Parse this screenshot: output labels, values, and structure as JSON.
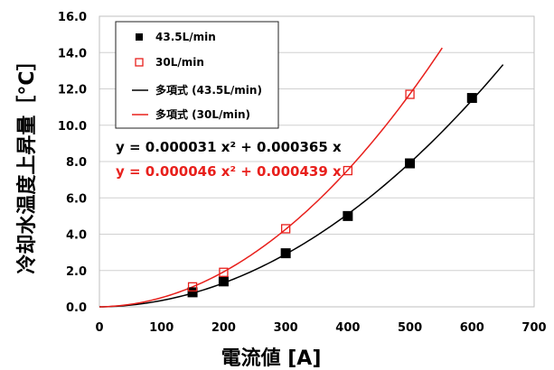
{
  "chart_data": {
    "type": "scatter",
    "xlabel": "電流値 [A]",
    "ylabel": "冷却水温度上昇量［°C］",
    "xlim": [
      0,
      700
    ],
    "ylim": [
      0,
      16
    ],
    "x_ticks": [
      "0",
      "100",
      "200",
      "300",
      "400",
      "500",
      "600",
      "700"
    ],
    "y_ticks": [
      "0.0",
      "2.0",
      "4.0",
      "6.0",
      "8.0",
      "10.0",
      "12.0",
      "14.0",
      "16.0"
    ],
    "grid": "horizontal",
    "legend_position": "top-left",
    "series": [
      {
        "name": "43.5L/min",
        "marker": "filled-square",
        "color": "#000000",
        "points": [
          [
            150,
            0.8
          ],
          [
            200,
            1.4
          ],
          [
            300,
            2.95
          ],
          [
            400,
            5.0
          ],
          [
            500,
            7.9
          ],
          [
            600,
            11.5
          ]
        ]
      },
      {
        "name": "30L/min",
        "marker": "open-square",
        "color": "#e8201c",
        "points": [
          [
            150,
            1.1
          ],
          [
            200,
            1.9
          ],
          [
            300,
            4.3
          ],
          [
            400,
            7.5
          ],
          [
            500,
            11.7
          ]
        ]
      }
    ],
    "trendlines": [
      {
        "name": "多項式 (43.5L/min)",
        "color": "#000000",
        "a": 3.1e-05,
        "b": 0.000365,
        "x_range": [
          0,
          650
        ],
        "equation": "y = 0.000031 x² + 0.000365 x"
      },
      {
        "name": "多項式 (30L/min)",
        "color": "#e8201c",
        "a": 4.6e-05,
        "b": 0.000439,
        "x_range": [
          0,
          552
        ],
        "equation": "y = 0.000046 x² + 0.000439 x"
      }
    ]
  }
}
